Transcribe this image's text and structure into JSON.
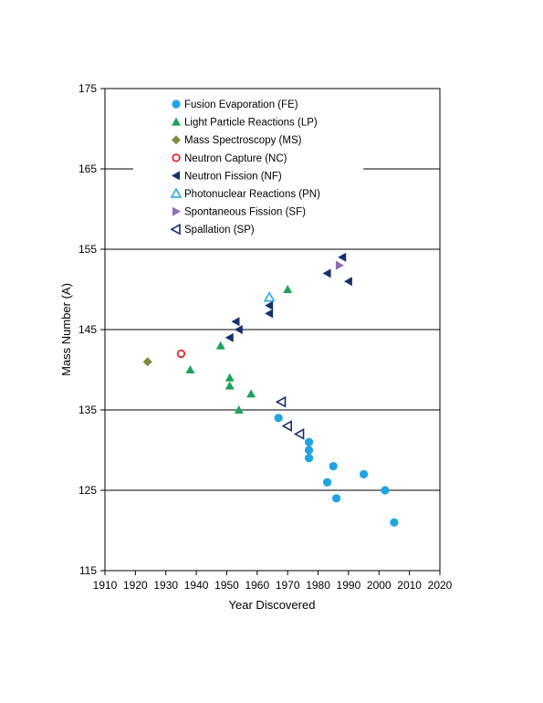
{
  "chart_data": {
    "type": "scatter",
    "title": "",
    "xlabel": "Year Discovered",
    "ylabel": "Mass Number (A)",
    "xlim": [
      1910,
      2020
    ],
    "ylim": [
      115,
      175
    ],
    "xticks": [
      "1910",
      "1920",
      "1930",
      "1940",
      "1950",
      "1960",
      "1970",
      "1980",
      "1990",
      "2000",
      "2010",
      "2020"
    ],
    "yticks": [
      "115",
      "125",
      "135",
      "145",
      "155",
      "165",
      "175"
    ],
    "grid": "horizontal major gridlines",
    "legend_position": "top-left inside plot",
    "series": [
      {
        "name": "Fusion Evaporation (FE)",
        "marker": "circle-filled",
        "color": "#1ea5e0",
        "points": [
          [
            1967,
            134
          ],
          [
            1977,
            131
          ],
          [
            1977,
            130
          ],
          [
            1977,
            129
          ],
          [
            1983,
            126
          ],
          [
            1985,
            128
          ],
          [
            1986,
            124
          ],
          [
            1995,
            127
          ],
          [
            2002,
            125
          ],
          [
            2005,
            121
          ]
        ]
      },
      {
        "name": "Light Particle Reactions (LP)",
        "marker": "triangle-up-filled",
        "color": "#1aa356",
        "points": [
          [
            1938,
            140
          ],
          [
            1948,
            143
          ],
          [
            1951,
            139
          ],
          [
            1951,
            138
          ],
          [
            1954,
            135
          ],
          [
            1958,
            137
          ],
          [
            1970,
            150
          ]
        ]
      },
      {
        "name": "Mass Spectroscopy (MS)",
        "marker": "diamond-filled",
        "color": "#7c8b3c",
        "points": [
          [
            1924,
            141
          ]
        ]
      },
      {
        "name": "Neutron Capture (NC)",
        "marker": "circle-open",
        "color": "#e8262b",
        "points": [
          [
            1935,
            142
          ]
        ]
      },
      {
        "name": "Neutron Fission (NF)",
        "marker": "triangle-left-filled",
        "color": "#14306e",
        "points": [
          [
            1951,
            144
          ],
          [
            1953,
            146
          ],
          [
            1954,
            145
          ],
          [
            1964,
            148
          ],
          [
            1964,
            147
          ],
          [
            1983,
            152
          ],
          [
            1988,
            154
          ],
          [
            1990,
            151
          ]
        ]
      },
      {
        "name": "Photonuclear Reactions (PN)",
        "marker": "triangle-up-open",
        "color": "#1ea5e0",
        "points": [
          [
            1964,
            149
          ]
        ]
      },
      {
        "name": "Spontaneous Fission (SF)",
        "marker": "triangle-right-filled",
        "color": "#8d6bb6",
        "points": [
          [
            1987,
            153
          ]
        ]
      },
      {
        "name": "Spallation (SP)",
        "marker": "triangle-left-open",
        "color": "#14306e",
        "points": [
          [
            1968,
            136
          ],
          [
            1970,
            133
          ],
          [
            1974,
            132
          ]
        ]
      }
    ]
  }
}
